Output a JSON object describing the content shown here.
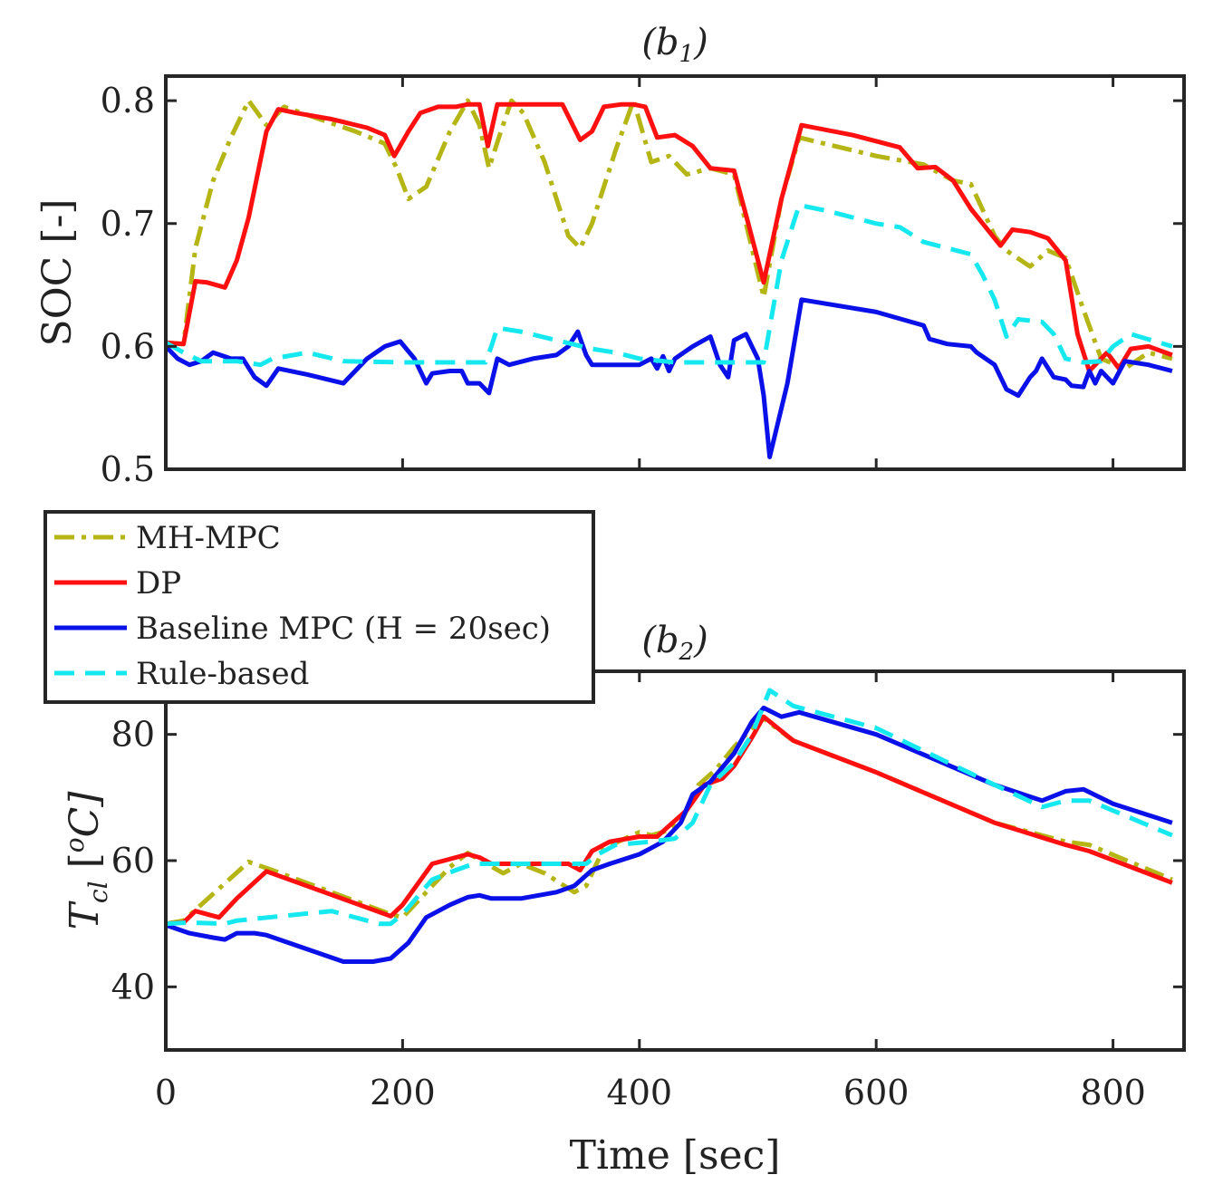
{
  "chart_data": [
    {
      "type": "line",
      "title": "(b1)",
      "xlabel": "",
      "ylabel": "SOC [-]",
      "xlim": [
        0,
        860
      ],
      "ylim": [
        0.5,
        0.82
      ],
      "xticks": [
        0,
        200,
        400,
        600,
        800
      ],
      "yticks": [
        0.5,
        0.6,
        0.7,
        0.8
      ],
      "ytick_labels": [
        "0.5",
        "0.6",
        "0.7",
        "0.8"
      ],
      "grid": false,
      "series": [
        {
          "name": "MH-MPC",
          "color": "#b5b516",
          "dash": "dashdot",
          "x": [
            0,
            15,
            25,
            40,
            55,
            70,
            85,
            100,
            130,
            160,
            185,
            195,
            205,
            220,
            240,
            255,
            265,
            273,
            283,
            292,
            302,
            320,
            340,
            350,
            360,
            380,
            395,
            410,
            425,
            440,
            460,
            480,
            495,
            505,
            520,
            535,
            600,
            640,
            665,
            680,
            700,
            710,
            730,
            745,
            760,
            775,
            790,
            810,
            830,
            850
          ],
          "y": [
            0.603,
            0.602,
            0.68,
            0.735,
            0.77,
            0.8,
            0.78,
            0.795,
            0.785,
            0.775,
            0.765,
            0.745,
            0.72,
            0.73,
            0.775,
            0.8,
            0.78,
            0.745,
            0.775,
            0.8,
            0.79,
            0.75,
            0.69,
            0.68,
            0.7,
            0.76,
            0.8,
            0.75,
            0.755,
            0.74,
            0.745,
            0.74,
            0.68,
            0.64,
            0.72,
            0.77,
            0.755,
            0.748,
            0.735,
            0.732,
            0.69,
            0.678,
            0.665,
            0.678,
            0.672,
            0.63,
            0.59,
            0.582,
            0.595,
            0.59
          ]
        },
        {
          "name": "DP",
          "color": "#ff1010",
          "dash": "solid",
          "x": [
            0,
            15,
            25,
            35,
            50,
            60,
            70,
            85,
            95,
            110,
            140,
            170,
            185,
            193,
            205,
            215,
            230,
            245,
            255,
            265,
            272,
            280,
            290,
            300,
            320,
            335,
            350,
            360,
            370,
            385,
            395,
            405,
            415,
            430,
            445,
            460,
            480,
            492,
            505,
            520,
            537,
            580,
            620,
            635,
            650,
            665,
            680,
            690,
            705,
            715,
            730,
            745,
            760,
            770,
            780,
            795,
            805,
            815,
            830,
            850
          ],
          "y": [
            0.603,
            0.602,
            0.653,
            0.652,
            0.648,
            0.67,
            0.705,
            0.775,
            0.793,
            0.79,
            0.785,
            0.778,
            0.772,
            0.755,
            0.775,
            0.79,
            0.795,
            0.795,
            0.797,
            0.797,
            0.763,
            0.797,
            0.797,
            0.797,
            0.797,
            0.797,
            0.768,
            0.775,
            0.795,
            0.797,
            0.797,
            0.795,
            0.77,
            0.772,
            0.763,
            0.745,
            0.743,
            0.7,
            0.652,
            0.72,
            0.78,
            0.772,
            0.762,
            0.745,
            0.746,
            0.735,
            0.712,
            0.7,
            0.682,
            0.695,
            0.693,
            0.688,
            0.67,
            0.61,
            0.58,
            0.595,
            0.582,
            0.598,
            0.6,
            0.593
          ]
        },
        {
          "name": "Baseline MPC (H = 20sec)",
          "color": "#0a10e8",
          "dash": "solid",
          "x": [
            0,
            10,
            20,
            30,
            40,
            55,
            65,
            75,
            85,
            95,
            120,
            150,
            160,
            170,
            185,
            198,
            210,
            220,
            225,
            240,
            250,
            255,
            265,
            273,
            280,
            290,
            310,
            330,
            340,
            348,
            355,
            360,
            370,
            400,
            410,
            415,
            420,
            425,
            430,
            445,
            460,
            468,
            475,
            480,
            490,
            500,
            505,
            510,
            525,
            537,
            600,
            640,
            645,
            660,
            680,
            685,
            700,
            710,
            720,
            730,
            735,
            740,
            750,
            760,
            765,
            775,
            780,
            785,
            790,
            795,
            800,
            810,
            830,
            850
          ],
          "y": [
            0.6,
            0.59,
            0.585,
            0.588,
            0.595,
            0.59,
            0.59,
            0.575,
            0.568,
            0.582,
            0.577,
            0.57,
            0.58,
            0.59,
            0.6,
            0.604,
            0.59,
            0.57,
            0.578,
            0.58,
            0.58,
            0.57,
            0.57,
            0.562,
            0.59,
            0.585,
            0.59,
            0.593,
            0.6,
            0.612,
            0.593,
            0.585,
            0.585,
            0.585,
            0.59,
            0.582,
            0.592,
            0.58,
            0.59,
            0.6,
            0.608,
            0.585,
            0.575,
            0.605,
            0.61,
            0.59,
            0.56,
            0.51,
            0.57,
            0.638,
            0.628,
            0.617,
            0.606,
            0.602,
            0.6,
            0.595,
            0.585,
            0.565,
            0.56,
            0.575,
            0.58,
            0.59,
            0.575,
            0.573,
            0.568,
            0.567,
            0.58,
            0.57,
            0.58,
            0.575,
            0.57,
            0.588,
            0.585,
            0.58
          ]
        },
        {
          "name": "Rule-based",
          "color": "#16e8f0",
          "dash": "dashed",
          "x": [
            0,
            15,
            30,
            60,
            80,
            90,
            120,
            150,
            200,
            270,
            275,
            280,
            300,
            360,
            380,
            400,
            430,
            460,
            480,
            505,
            520,
            535,
            560,
            600,
            620,
            640,
            660,
            680,
            690,
            700,
            710,
            720,
            740,
            750,
            760,
            775,
            790,
            800,
            815,
            850
          ],
          "y": [
            0.603,
            0.595,
            0.588,
            0.588,
            0.585,
            0.59,
            0.595,
            0.588,
            0.587,
            0.587,
            0.6,
            0.615,
            0.612,
            0.598,
            0.595,
            0.59,
            0.587,
            0.587,
            0.587,
            0.587,
            0.67,
            0.715,
            0.71,
            0.7,
            0.697,
            0.685,
            0.68,
            0.675,
            0.658,
            0.638,
            0.608,
            0.622,
            0.62,
            0.61,
            0.59,
            0.587,
            0.588,
            0.6,
            0.61,
            0.6
          ]
        }
      ]
    },
    {
      "type": "line",
      "title": "(b2)",
      "xlabel": "Time [sec]",
      "ylabel": "T_cl [°C]",
      "xlim": [
        0,
        860
      ],
      "ylim": [
        30,
        90
      ],
      "xticks": [
        0,
        200,
        400,
        600,
        800
      ],
      "xtick_labels": [
        "0",
        "200",
        "400",
        "600",
        "800"
      ],
      "yticks": [
        40,
        60,
        80
      ],
      "ytick_labels": [
        "40",
        "60",
        "80"
      ],
      "grid": false,
      "series": [
        {
          "name": "MH-MPC",
          "color": "#b5b516",
          "dash": "dashdot",
          "x": [
            0,
            15,
            70,
            90,
            190,
            200,
            240,
            255,
            285,
            300,
            320,
            345,
            355,
            370,
            400,
            410,
            420,
            435,
            450,
            465,
            480,
            495,
            505,
            530,
            600,
            700,
            760,
            780,
            850
          ],
          "y": [
            50,
            50.5,
            59.8,
            58.5,
            51.5,
            51,
            59,
            61.2,
            58,
            59.5,
            58,
            55,
            56,
            62,
            64.5,
            64,
            64.5,
            66,
            72,
            74.5,
            78,
            81,
            82.5,
            79,
            74,
            66,
            63,
            62.5,
            57
          ]
        },
        {
          "name": "DP",
          "color": "#ff1010",
          "dash": "solid",
          "x": [
            0,
            15,
            25,
            45,
            60,
            85,
            190,
            200,
            225,
            255,
            265,
            275,
            340,
            350,
            360,
            375,
            400,
            415,
            425,
            440,
            455,
            470,
            480,
            495,
            505,
            530,
            600,
            700,
            760,
            780,
            850
          ],
          "y": [
            50,
            50.2,
            52,
            51,
            54,
            58.3,
            51.2,
            53,
            59.5,
            61,
            60.5,
            59.5,
            59.5,
            58.5,
            61.5,
            63,
            63.8,
            63.8,
            65.5,
            68,
            72,
            73,
            75,
            79.5,
            82.8,
            79,
            74,
            66,
            62.5,
            61.5,
            56.5
          ]
        },
        {
          "name": "Baseline MPC (H = 20sec)",
          "color": "#0a10e8",
          "dash": "solid",
          "x": [
            0,
            20,
            40,
            50,
            60,
            75,
            85,
            150,
            175,
            190,
            205,
            220,
            240,
            255,
            265,
            275,
            300,
            330,
            345,
            360,
            375,
            400,
            410,
            420,
            435,
            445,
            460,
            480,
            495,
            505,
            520,
            535,
            600,
            700,
            740,
            760,
            775,
            800,
            850
          ],
          "y": [
            49.8,
            48.5,
            47.8,
            47.5,
            48.5,
            48.5,
            48.2,
            44,
            44,
            44.5,
            47,
            51,
            53,
            54.2,
            54.5,
            54,
            54,
            55,
            56,
            58.5,
            59.5,
            61,
            62,
            63,
            66,
            70.5,
            72.5,
            77,
            82,
            84.2,
            82.8,
            83.5,
            80,
            72,
            69.5,
            71,
            71.3,
            69,
            66
          ]
        },
        {
          "name": "Rule-based",
          "color": "#16e8f0",
          "dash": "dashed",
          "x": [
            0,
            20,
            50,
            60,
            140,
            180,
            190,
            200,
            225,
            245,
            260,
            290,
            355,
            365,
            380,
            410,
            430,
            445,
            460,
            480,
            495,
            510,
            530,
            600,
            700,
            740,
            760,
            780,
            850
          ],
          "y": [
            50,
            50.2,
            50,
            50.5,
            52,
            50,
            50,
            51.5,
            57,
            58.5,
            59.5,
            59.5,
            59.5,
            61,
            62.5,
            63,
            63.5,
            66,
            72,
            75.5,
            80,
            87,
            84.5,
            81,
            72,
            68.5,
            69.5,
            69.5,
            64
          ]
        }
      ]
    }
  ],
  "legend": {
    "placement": "over-bottom-left",
    "items": [
      {
        "label": "MH-MPC",
        "series": "MH-MPC"
      },
      {
        "label": "DP",
        "series": "DP"
      },
      {
        "label": "Baseline MPC (H = 20sec)",
        "series": "Baseline MPC (H = 20sec)"
      },
      {
        "label": "Rule-based",
        "series": "Rule-based"
      }
    ]
  }
}
